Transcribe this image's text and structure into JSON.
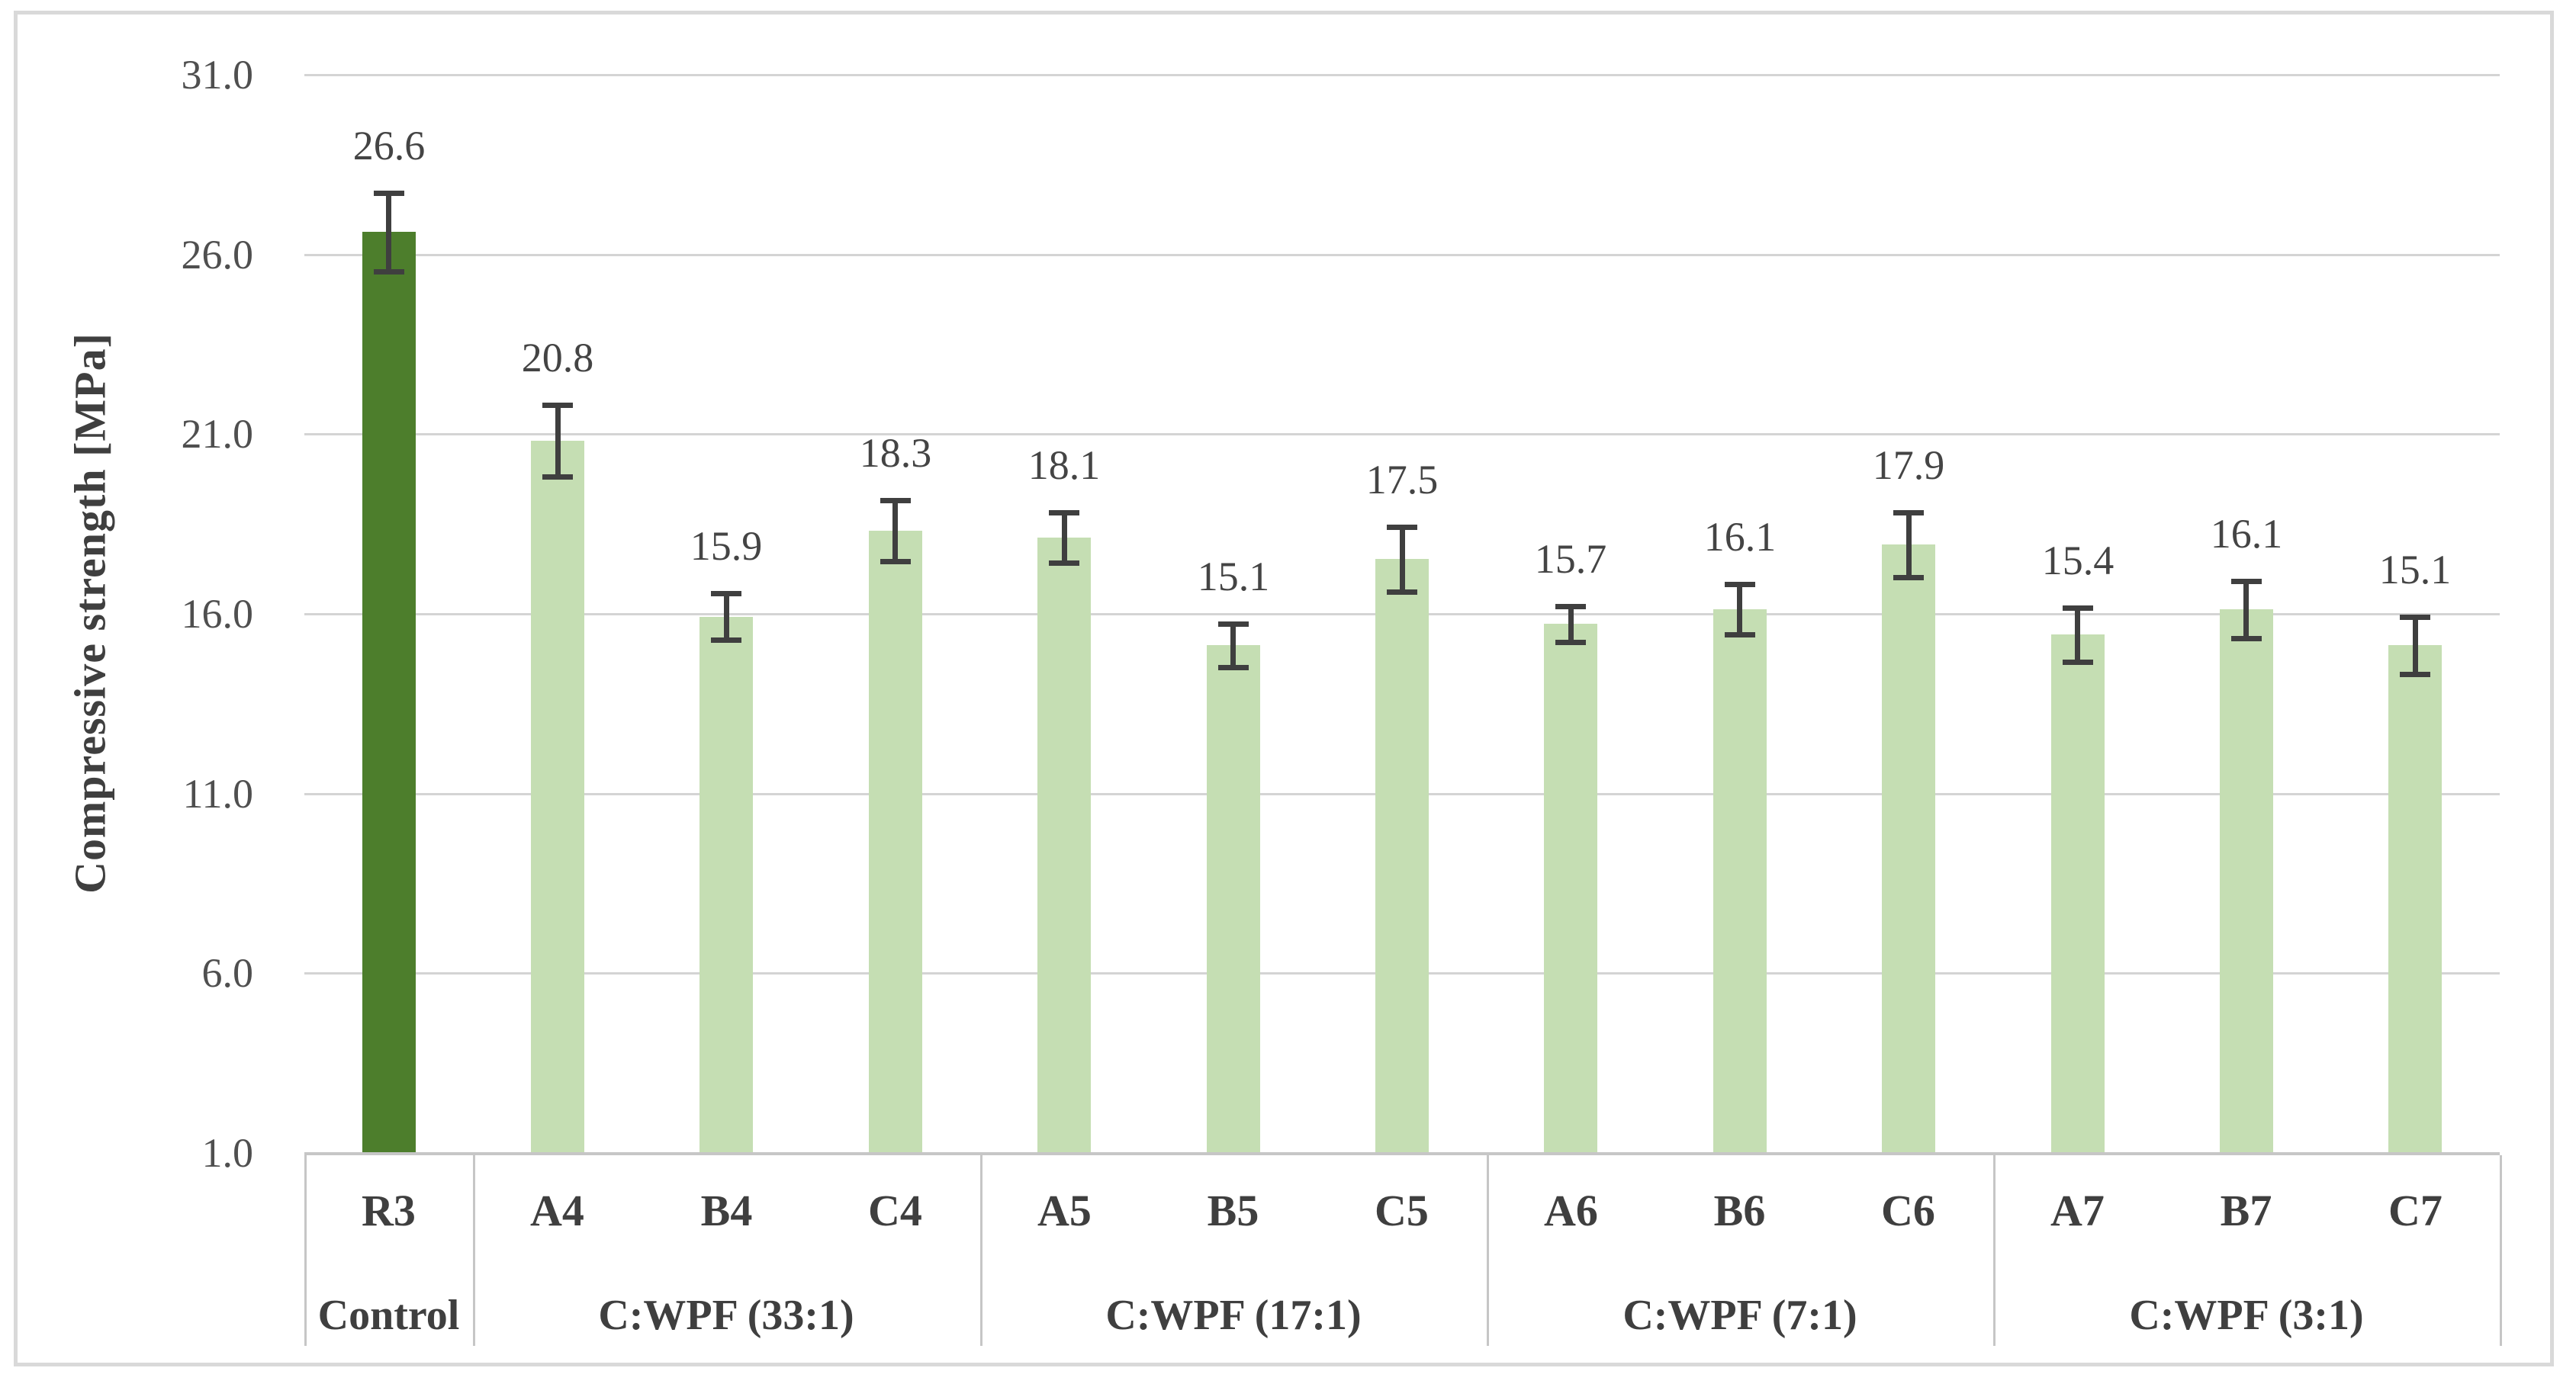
{
  "chart_data": {
    "type": "bar",
    "title": "",
    "ylabel": "Compressive strength [MPa]",
    "xlabel": "",
    "ylim": [
      1.0,
      31.0
    ],
    "ytick_step": 5.0,
    "yticks": [
      "31.0",
      "26.0",
      "21.0",
      "16.0",
      "11.0",
      "6.0",
      "1.0"
    ],
    "grid": true,
    "legend": false,
    "categories": [
      "R3",
      "A4",
      "B4",
      "C4",
      "A5",
      "B5",
      "C5",
      "A6",
      "B6",
      "C6",
      "A7",
      "B7",
      "C7"
    ],
    "values": [
      26.6,
      20.8,
      15.9,
      18.3,
      18.1,
      15.1,
      17.5,
      15.7,
      16.1,
      17.9,
      15.4,
      16.1,
      15.1
    ],
    "data_labels": [
      "26.6",
      "20.8",
      "15.9",
      "18.3",
      "18.1",
      "15.1",
      "17.5",
      "15.7",
      "16.1",
      "17.9",
      "15.4",
      "16.1",
      "15.1"
    ],
    "error_bars": [
      1.1,
      1.0,
      0.65,
      0.85,
      0.7,
      0.6,
      0.9,
      0.5,
      0.7,
      0.9,
      0.75,
      0.8,
      0.8
    ],
    "groups": [
      {
        "label": "Control",
        "count": 1
      },
      {
        "label": "C:WPF (33:1)",
        "count": 3
      },
      {
        "label": "C:WPF (17:1)",
        "count": 3
      },
      {
        "label": "C:WPF (7:1)",
        "count": 3
      },
      {
        "label": "C:WPF (3:1)",
        "count": 3
      }
    ],
    "colors": {
      "control_bar": "#4d7e2c",
      "series_bar": "#c5deb3",
      "error_bar": "#3f3f3f",
      "gridline": "#d4d4d4",
      "axis_line": "#c6c6c6",
      "text": "#3f3f3f",
      "border": "#d9d9d9"
    }
  }
}
